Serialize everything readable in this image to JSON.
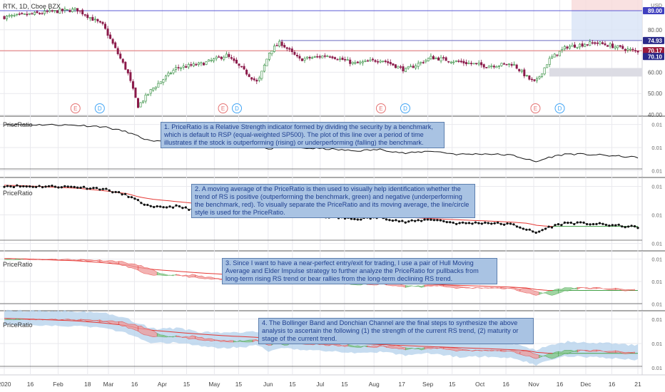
{
  "header": {
    "symbol_title": "RTK, 1D, Cboe BZX",
    "currency": "USD"
  },
  "indicator_label": "PriceRatio",
  "annotations": [
    "1. PriceRatio is a Relative Strength indicator formed by dividing the security by a benchmark, which is default to RSP (equal-weighted SP500). The plot of this line over a period of time illustrates if the stock is outperforming (rising) or underperforming (falling) the benchmark.",
    "2. A moving average of the PriceRatio is then used to visually help identification whether the trend of RS is positive (outperforming the benchmark, green) and negative (underperforming the benchmark, red). To visually separate the PriceRatio and its moving average, the line/circle style is used for the PriceRatio.",
    "3. Since I want to have a near-perfect entry/exit for trading, I use a pair of Hull Moving Average and Elder Impulse strategy to further analyze the PriceRatio for pullbacks from long-term rising RS trend or bear rallies from the long-term declining RS trend.",
    "4. The Bollinger Band and Donchian Channel are the final steps to synthesize the above analysis to ascertain the following (1) the strength of the current RS trend, (2) maturity or stage of the current trend."
  ],
  "price_tags": [
    {
      "label": "89.00",
      "color": "#3f3fbf"
    },
    {
      "label": "74.93",
      "color": "#2a2a8a"
    },
    {
      "label": "70.17",
      "color": "#9b1b3b"
    },
    {
      "label": "70.10",
      "color": "#2a2a8a"
    }
  ],
  "event_markers": [
    "E",
    "D",
    "E",
    "D",
    "E",
    "D",
    "E",
    "D"
  ],
  "colors": {
    "up": "#26a69a",
    "up_green": "#2e8b3a",
    "down": "#8b1a4a",
    "ma_red": "#e53935",
    "ma_green": "#43a047",
    "band": "#aecdea",
    "grid": "#e9e9ee",
    "ref_blue": "#5b5bd6",
    "ref_red": "#e57373"
  },
  "chart_data": [
    {
      "type": "candlestick",
      "title": "RTK, 1D, Cboe BZX",
      "ylim": [
        40,
        90
      ],
      "y_ticks": [
        "40.00",
        "50.00",
        "60.00",
        "70.00",
        "80.00"
      ],
      "x_ticks": [
        "2020",
        "16",
        "Feb",
        "18",
        "Mar",
        "16",
        "Apr",
        "15",
        "May",
        "15",
        "Jun",
        "15",
        "Jul",
        "15",
        "Aug",
        "17",
        "Sep",
        "15",
        "Oct",
        "16",
        "Nov",
        "16",
        "Dec",
        "16",
        "21"
      ],
      "x": [
        "2020-01-01",
        "2020-01-13",
        "2020-01-28",
        "2020-02-12",
        "2020-02-27",
        "2020-03-12",
        "2020-03-18",
        "2020-03-26",
        "2020-04-09",
        "2020-04-24",
        "2020-05-08",
        "2020-05-26",
        "2020-06-02",
        "2020-06-08",
        "2020-06-19",
        "2020-07-06",
        "2020-07-21",
        "2020-08-05",
        "2020-08-19",
        "2020-09-03",
        "2020-09-18",
        "2020-10-05",
        "2020-10-20",
        "2020-10-29",
        "2020-11-02",
        "2020-11-10",
        "2020-11-20",
        "2020-12-07",
        "2020-12-29"
      ],
      "close": [
        86,
        87,
        88.5,
        89.5,
        82,
        60,
        44,
        52,
        62,
        64,
        68,
        55,
        70,
        74,
        66,
        68,
        64,
        66,
        61,
        67,
        65,
        63,
        64,
        57,
        55,
        66,
        72,
        74,
        70
      ],
      "reference_levels": [
        89.0,
        74.93,
        70.17,
        70.1
      ]
    },
    {
      "type": "line",
      "title": "PriceRatio",
      "series": [
        {
          "values": [
            0.98,
            0.97,
            0.97,
            0.96,
            0.93,
            0.82,
            0.73,
            0.62,
            0.64,
            0.56,
            0.53,
            0.58,
            0.45,
            0.55,
            0.49,
            0.47,
            0.43,
            0.46,
            0.38,
            0.43,
            0.36,
            0.37,
            0.34,
            0.25,
            0.2,
            0.3,
            0.37,
            0.35,
            0.3
          ]
        }
      ]
    },
    {
      "type": "line",
      "title": "PriceRatio",
      "series": [
        {
          "values": [
            0.98,
            0.97,
            0.97,
            0.96,
            0.93,
            0.82,
            0.73,
            0.62,
            0.64,
            0.56,
            0.53,
            0.58,
            0.45,
            0.55,
            0.49,
            0.47,
            0.43,
            0.46,
            0.38,
            0.43,
            0.36,
            0.37,
            0.34,
            0.25,
            0.2,
            0.3,
            0.37,
            0.35,
            0.3
          ]
        },
        {
          "values": [
            0.99,
            0.98,
            0.96,
            0.94,
            0.9,
            0.85,
            0.8,
            0.76,
            0.72,
            0.68,
            0.65,
            0.62,
            0.6,
            0.58,
            0.56,
            0.53,
            0.5,
            0.48,
            0.46,
            0.44,
            0.42,
            0.4,
            0.38,
            0.36,
            0.33,
            0.31,
            0.31,
            0.31,
            0.31
          ]
        }
      ]
    },
    {
      "type": "area",
      "title": "PriceRatio",
      "series": [
        {
          "values": [
            0.98,
            0.97,
            0.97,
            0.96,
            0.93,
            0.82,
            0.73,
            0.62,
            0.64,
            0.56,
            0.53,
            0.58,
            0.45,
            0.55,
            0.49,
            0.47,
            0.43,
            0.46,
            0.38,
            0.43,
            0.36,
            0.37,
            0.34,
            0.25,
            0.2,
            0.3,
            0.37,
            0.35,
            0.3
          ]
        },
        {
          "values": [
            0.99,
            0.98,
            0.96,
            0.94,
            0.9,
            0.85,
            0.8,
            0.76,
            0.72,
            0.68,
            0.65,
            0.62,
            0.6,
            0.58,
            0.56,
            0.53,
            0.5,
            0.48,
            0.46,
            0.44,
            0.42,
            0.4,
            0.38,
            0.36,
            0.33,
            0.31,
            0.31,
            0.31,
            0.31
          ]
        }
      ]
    },
    {
      "type": "area",
      "title": "PriceRatio",
      "series": [
        {
          "values": [
            0.98,
            0.97,
            0.97,
            0.96,
            0.93,
            0.82,
            0.73,
            0.62,
            0.64,
            0.56,
            0.53,
            0.58,
            0.45,
            0.55,
            0.49,
            0.47,
            0.43,
            0.46,
            0.38,
            0.43,
            0.36,
            0.37,
            0.34,
            0.25,
            0.2,
            0.3,
            0.37,
            0.35,
            0.3
          ]
        },
        {
          "values": [
            0.99,
            0.98,
            0.96,
            0.94,
            0.9,
            0.85,
            0.8,
            0.76,
            0.72,
            0.68,
            0.65,
            0.62,
            0.6,
            0.58,
            0.56,
            0.53,
            0.5,
            0.48,
            0.46,
            0.44,
            0.42,
            0.4,
            0.38,
            0.36,
            0.33,
            0.31,
            0.31,
            0.31,
            0.31
          ]
        }
      ]
    }
  ]
}
